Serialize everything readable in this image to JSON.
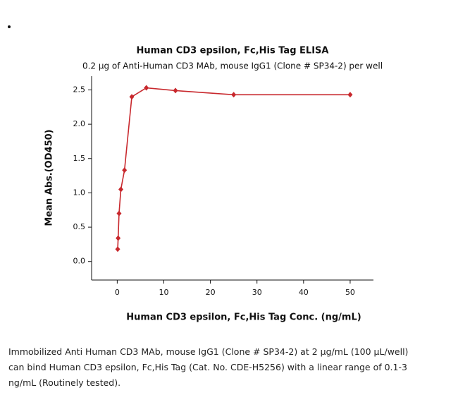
{
  "chart_data": {
    "type": "line",
    "title": "Human CD3 epsilon, Fc,His Tag ELISA",
    "subtitle": "0.2 µg of Anti-Human CD3 MAb, mouse IgG1 (Clone # SP34-2) per well",
    "x_label": "Human CD3 epsilon, Fc,His Tag Conc. (ng/mL)",
    "y_label": "Mean Abs.(OD450)",
    "series": [
      {
        "name": "Human CD3 epsilon, Fc,His Tag",
        "color": "#c8282d",
        "x": [
          0.1,
          0.2,
          0.39,
          0.78,
          1.56,
          3.13,
          6.25,
          12.5,
          25,
          50
        ],
        "values": [
          0.18,
          0.34,
          0.7,
          1.05,
          1.33,
          2.4,
          2.53,
          2.49,
          2.43,
          2.43
        ]
      }
    ],
    "xlim": [
      -5.5,
      55
    ],
    "ylim": [
      -0.27,
      2.7
    ],
    "xticks": [
      0,
      10,
      20,
      30,
      40,
      50
    ],
    "yticks": [
      {
        "value": 0,
        "label": "0.0"
      },
      {
        "value": 0.5,
        "label": "0.5"
      },
      {
        "value": 1,
        "label": "1.0"
      },
      {
        "value": 1.5,
        "label": "1.5"
      },
      {
        "value": 2,
        "label": "2.0"
      },
      {
        "value": 2.5,
        "label": "2.5"
      }
    ]
  },
  "caption": [
    "Immobilized Anti Human CD3 MAb, mouse IgG1 (Clone # SP34-2) at 2 µg/mL (100 µL/well)",
    "can bind Human CD3 epsilon, Fc,His Tag (Cat. No. CDE-H5256) with a linear range of 0.1-3",
    "ng/mL (Routinely tested)."
  ]
}
